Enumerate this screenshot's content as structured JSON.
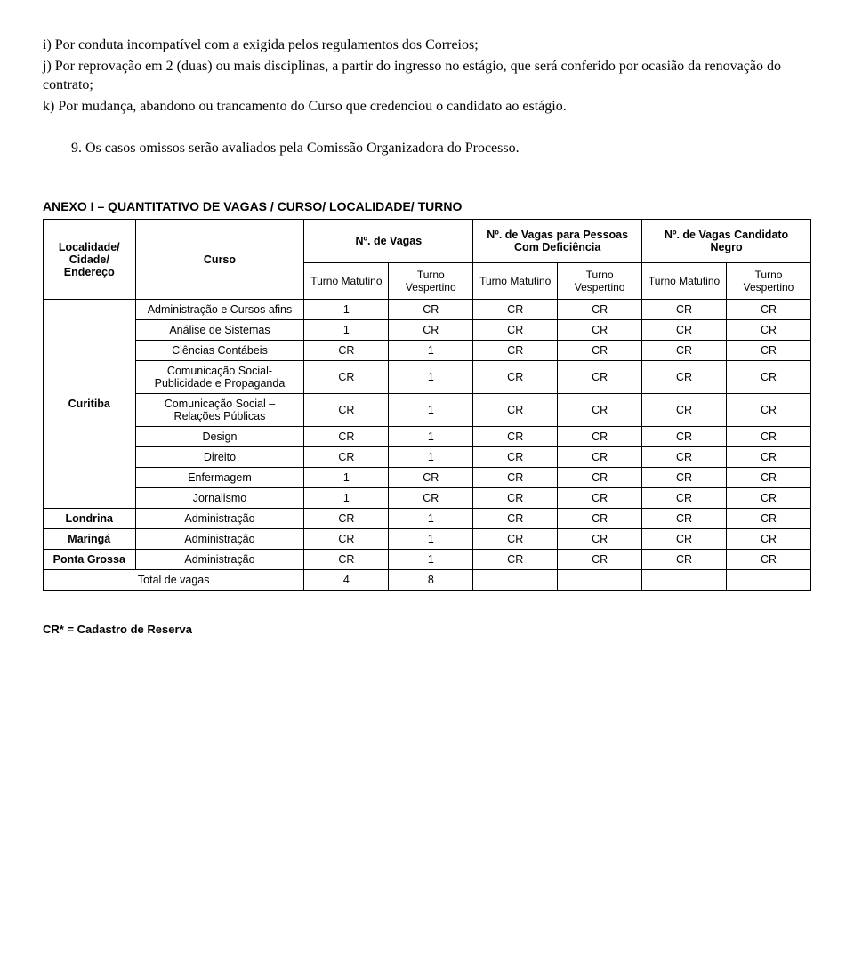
{
  "clauses": {
    "i": "i) Por conduta incompatível com a exigida pelos regulamentos dos Correios;",
    "j": "j) Por reprovação em 2 (duas) ou mais disciplinas, a partir do ingresso no estágio, que será conferido por ocasião da renovação do contrato;",
    "k": "k) Por mudança, abandono ou trancamento do Curso que credenciou o candidato ao estágio."
  },
  "section9": "9. Os casos omissos serão avaliados pela Comissão Organizadora do Processo.",
  "table": {
    "title": "ANEXO I – QUANTITATIVO DE VAGAS / CURSO/ LOCALIDADE/ TURNO",
    "headers": {
      "localidade": "Localidade/ Cidade/ Endereço",
      "curso": "Curso",
      "vagas": "Nº. de Vagas",
      "vagas_def": "Nº. de Vagas para Pessoas Com Deficiência",
      "vagas_negro": "Nº. de Vagas Candidato Negro",
      "matutino": "Turno Matutino",
      "vespertino": "Turno Vespertino"
    },
    "groups": [
      {
        "localidade": "Curitiba",
        "rows": [
          {
            "curso": "Administração e Cursos afins",
            "v": [
              "1",
              "CR",
              "CR",
              "CR",
              "CR",
              "CR"
            ]
          },
          {
            "curso": "Análise de Sistemas",
            "v": [
              "1",
              "CR",
              "CR",
              "CR",
              "CR",
              "CR"
            ]
          },
          {
            "curso": "Ciências Contábeis",
            "v": [
              "CR",
              "1",
              "CR",
              "CR",
              "CR",
              "CR"
            ]
          },
          {
            "curso": "Comunicação Social- Publicidade e Propaganda",
            "v": [
              "CR",
              "1",
              "CR",
              "CR",
              "CR",
              "CR"
            ]
          },
          {
            "curso": "Comunicação Social – Relações Públicas",
            "v": [
              "CR",
              "1",
              "CR",
              "CR",
              "CR",
              "CR"
            ]
          },
          {
            "curso": "Design",
            "v": [
              "CR",
              "1",
              "CR",
              "CR",
              "CR",
              "CR"
            ]
          },
          {
            "curso": "Direito",
            "v": [
              "CR",
              "1",
              "CR",
              "CR",
              "CR",
              "CR"
            ]
          },
          {
            "curso": "Enfermagem",
            "v": [
              "1",
              "CR",
              "CR",
              "CR",
              "CR",
              "CR"
            ]
          },
          {
            "curso": "Jornalismo",
            "v": [
              "1",
              "CR",
              "CR",
              "CR",
              "CR",
              "CR"
            ]
          }
        ]
      },
      {
        "localidade": "Londrina",
        "rows": [
          {
            "curso": "Administração",
            "v": [
              "CR",
              "1",
              "CR",
              "CR",
              "CR",
              "CR"
            ]
          }
        ]
      },
      {
        "localidade": "Maringá",
        "rows": [
          {
            "curso": "Administração",
            "v": [
              "CR",
              "1",
              "CR",
              "CR",
              "CR",
              "CR"
            ]
          }
        ]
      },
      {
        "localidade": "Ponta Grossa",
        "rows": [
          {
            "curso": "Administração",
            "v": [
              "CR",
              "1",
              "CR",
              "CR",
              "CR",
              "CR"
            ]
          }
        ]
      }
    ],
    "total": {
      "label": "Total de vagas",
      "matutino": "4",
      "vespertino": "8"
    }
  },
  "footer": "CR* = Cadastro de Reserva"
}
